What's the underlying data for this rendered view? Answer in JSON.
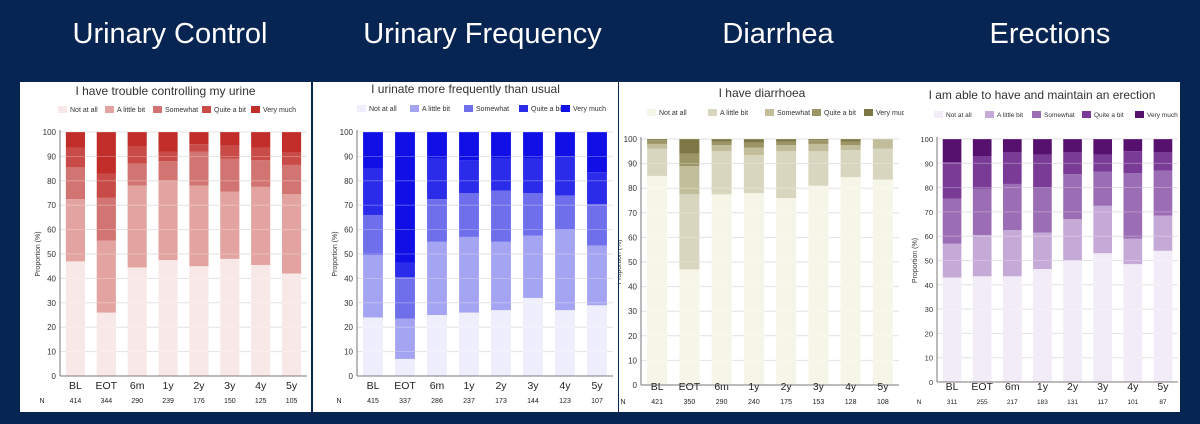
{
  "headers": [
    "Urinary Control",
    "Urinary Frequency",
    "Diarrhea",
    "Erections"
  ],
  "legend_labels": [
    "Not at all",
    "A little bit",
    "Somewhat",
    "Quite a bit",
    "Very much"
  ],
  "chart_data": [
    {
      "type": "bar",
      "stacked": true,
      "title": "I have trouble controlling my urine",
      "ylabel": "Proportion (%)",
      "ylim": [
        0,
        100
      ],
      "yticks": [
        0,
        10,
        20,
        30,
        40,
        50,
        60,
        70,
        80,
        90,
        100
      ],
      "grid": true,
      "legend": "top",
      "categories": [
        "BL",
        "EOT",
        "6m",
        "1y",
        "2y",
        "3y",
        "4y",
        "5y"
      ],
      "n_label": "N",
      "n": [
        "414",
        "344",
        "290",
        "239",
        "176",
        "150",
        "125",
        "105"
      ],
      "colors": [
        "#f8e8e7",
        "#e3a4a1",
        "#d27572",
        "#c84b47",
        "#c12d28"
      ],
      "series": [
        {
          "name": "Not at all",
          "values": [
            47,
            26,
            44.5,
            47.5,
            45,
            48,
            45.5,
            42
          ]
        },
        {
          "name": "A little bit",
          "values": [
            25.5,
            29.5,
            33.5,
            32.5,
            33,
            27.5,
            32,
            32.5
          ]
        },
        {
          "name": "Somewhat",
          "values": [
            13,
            17.5,
            9,
            8,
            14,
            13.5,
            11,
            12
          ]
        },
        {
          "name": "Quite a bit",
          "values": [
            8,
            10,
            7,
            4,
            3,
            5.5,
            5,
            5
          ]
        },
        {
          "name": "Very much",
          "values": [
            6.5,
            17,
            6,
            8,
            5,
            5.5,
            6.5,
            8.5
          ]
        }
      ]
    },
    {
      "type": "bar",
      "stacked": true,
      "title": "I urinate more frequently than usual",
      "ylabel": "Proportion (%)",
      "ylim": [
        0,
        100
      ],
      "yticks": [
        0,
        10,
        20,
        30,
        40,
        50,
        60,
        70,
        80,
        90,
        100
      ],
      "grid": true,
      "legend": "top",
      "categories": [
        "BL",
        "EOT",
        "6m",
        "1y",
        "2y",
        "3y",
        "4y",
        "5y"
      ],
      "n_label": "N",
      "n": [
        "415",
        "337",
        "286",
        "237",
        "173",
        "144",
        "123",
        "107"
      ],
      "colors": [
        "#eeeefc",
        "#a4a4f2",
        "#6f6fec",
        "#2b2bea",
        "#1010e6"
      ],
      "series": [
        {
          "name": "Not at all",
          "values": [
            24,
            7,
            25,
            26,
            27,
            32,
            27,
            29
          ]
        },
        {
          "name": "A little bit",
          "values": [
            25.5,
            16.5,
            30,
            31,
            28,
            25.5,
            33,
            24.5
          ]
        },
        {
          "name": "Somewhat",
          "values": [
            16.5,
            17,
            17.5,
            18,
            21,
            17.5,
            14,
            17
          ]
        },
        {
          "name": "Quite a bit",
          "values": [
            19,
            6,
            16.5,
            13.5,
            13,
            14,
            16,
            13
          ]
        },
        {
          "name": "Very much",
          "values": [
            15,
            53.5,
            11,
            11.5,
            11,
            11,
            10,
            16.5
          ]
        }
      ]
    },
    {
      "type": "bar",
      "stacked": true,
      "title": "I have diarrhoea",
      "ylabel": "Proportion (%)",
      "ylim": [
        0,
        100
      ],
      "yticks": [
        0,
        10,
        20,
        30,
        40,
        50,
        60,
        70,
        80,
        90,
        100
      ],
      "grid": true,
      "legend": "top",
      "categories": [
        "BL",
        "EOT",
        "6m",
        "1y",
        "2y",
        "3y",
        "4y",
        "5y"
      ],
      "n_label": "N",
      "n": [
        "421",
        "350",
        "290",
        "240",
        "175",
        "153",
        "128",
        "108"
      ],
      "colors": [
        "#f6f6e8",
        "#d9d6bf",
        "#c2be9c",
        "#9c9565",
        "#7d7645"
      ],
      "series": [
        {
          "name": "Not at all",
          "values": [
            85,
            47,
            77.5,
            78,
            76,
            81,
            84.5,
            83.5
          ]
        },
        {
          "name": "A little bit",
          "values": [
            11,
            30.5,
            17.5,
            15.5,
            19,
            14,
            11,
            12.5
          ]
        },
        {
          "name": "Somewhat",
          "values": [
            2,
            11.5,
            2.5,
            3,
            2.5,
            3,
            2,
            4
          ]
        },
        {
          "name": "Quite a bit",
          "values": [
            1.5,
            5,
            1.5,
            2,
            1.5,
            1.5,
            1.5,
            0
          ]
        },
        {
          "name": "Very much",
          "values": [
            0.5,
            6,
            1,
            1.5,
            1,
            0.5,
            1,
            0
          ]
        }
      ]
    },
    {
      "type": "bar",
      "stacked": true,
      "title": "I am able to have and maintain an erection",
      "ylabel": "Proportion (%)",
      "ylim": [
        0,
        100
      ],
      "yticks": [
        0,
        10,
        20,
        30,
        40,
        50,
        60,
        70,
        80,
        90,
        100
      ],
      "grid": true,
      "legend": "top",
      "categories": [
        "BL",
        "EOT",
        "6m",
        "1y",
        "2y",
        "3y",
        "4y",
        "5y"
      ],
      "n_label": "N",
      "n": [
        "311",
        "255",
        "217",
        "183",
        "131",
        "117",
        "101",
        "87"
      ],
      "colors": [
        "#f1ecf7",
        "#c5a9d6",
        "#9b6db5",
        "#7a3b97",
        "#56116f"
      ],
      "series": [
        {
          "name": "Not at all",
          "values": [
            43,
            43.5,
            43.5,
            46.5,
            50,
            53,
            48.5,
            54
          ]
        },
        {
          "name": "A little bit",
          "values": [
            14,
            17,
            19,
            15,
            17,
            19.5,
            10.5,
            14.5
          ]
        },
        {
          "name": "Somewhat",
          "values": [
            18.5,
            19,
            19,
            18.5,
            18.5,
            14,
            27,
            18.5
          ]
        },
        {
          "name": "Quite a bit",
          "values": [
            15,
            13.5,
            13,
            13.5,
            9,
            7,
            9,
            7.5
          ]
        },
        {
          "name": "Very much",
          "values": [
            9.5,
            7,
            5.5,
            6.5,
            5.5,
            6.5,
            5,
            5.5
          ]
        }
      ]
    }
  ]
}
